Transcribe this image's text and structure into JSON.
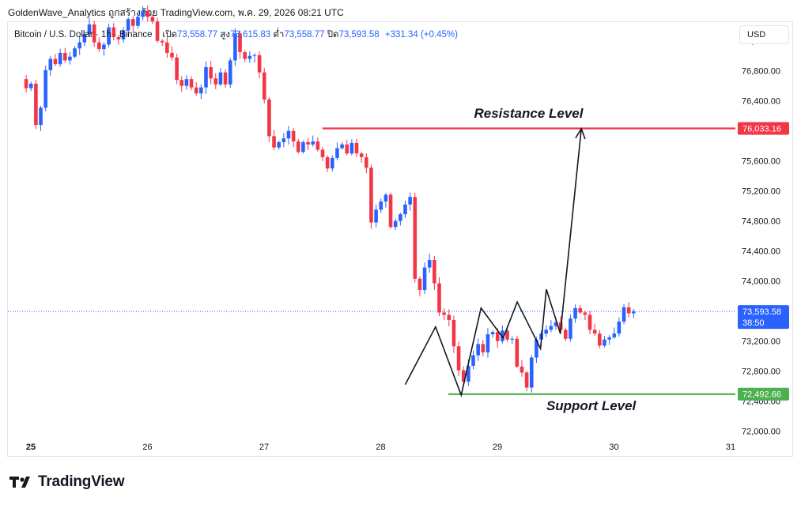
{
  "header": {
    "attribution": "GoldenWave_Analytics ถูกสร้างด้วย TradingView.com, พ.ค. 29, 2026 08:21 UTC"
  },
  "legend": {
    "symbol": "Bitcoin / U.S. Dollar · 1h · Binance",
    "open_label": "เปิด",
    "open": "73,558.77",
    "high_label": "สูง",
    "high": "73,615.83",
    "low_label": "ต่ำ",
    "low": "73,558.77",
    "close_label": "ปิด",
    "close": "73,593.58",
    "change": "+331.34 (+0.45%)"
  },
  "currency": "USD",
  "brand": {
    "name": "TradingView",
    "logo_icon": "tradingview-logo-icon"
  },
  "colors": {
    "up": "#2962ff",
    "down": "#f23645",
    "resistance": "#f23645",
    "support": "#4caf50",
    "last_price": "#2962ff",
    "arrow": "#131722"
  },
  "chart_data": {
    "type": "candlestick",
    "interval": "1h",
    "ylim": [
      71900,
      77450
    ],
    "y_ticks": [
      72000,
      72400,
      72800,
      73200,
      73600,
      74000,
      74400,
      74800,
      75200,
      75600,
      76000,
      76400,
      76800,
      77200
    ],
    "y_tick_labels": [
      "72,000.00",
      "72,400.00",
      "72,800.00",
      "73,200.00",
      "73,600.00",
      "74,000.00",
      "74,400.00",
      "74,800.00",
      "75,200.00",
      "75,600.00",
      "76,000.00",
      "76,400.00",
      "76,800.00",
      "77,200.00"
    ],
    "x_ticks": [
      {
        "day": 25,
        "label": "25"
      },
      {
        "day": 26,
        "label": "26"
      },
      {
        "day": 27,
        "label": "27"
      },
      {
        "day": 28,
        "label": "28"
      },
      {
        "day": 29,
        "label": "29"
      },
      {
        "day": 30,
        "label": "30"
      },
      {
        "day": 31,
        "label": "31"
      }
    ],
    "start_day": 24.96,
    "candles_per_day": 24,
    "closes": [
      76570,
      76630,
      76080,
      76310,
      76810,
      76960,
      76890,
      77040,
      76940,
      76990,
      77100,
      77180,
      77290,
      77420,
      77180,
      77090,
      77150,
      77380,
      77250,
      77220,
      77340,
      77490,
      77400,
      77520,
      77600,
      77520,
      77460,
      77200,
      77180,
      77040,
      76980,
      76680,
      76600,
      76690,
      76580,
      76500,
      76580,
      76850,
      76700,
      76620,
      76780,
      76620,
      76940,
      77300,
      77050,
      76960,
      77000,
      77010,
      76780,
      76420,
      75930,
      75780,
      75850,
      75900,
      76000,
      75860,
      75720,
      75850,
      75820,
      75860,
      75750,
      75650,
      75500,
      75640,
      75770,
      75820,
      75700,
      75840,
      75700,
      75650,
      75510,
      74780,
      74950,
      75060,
      75150,
      74720,
      74800,
      74890,
      75020,
      75120,
      74030,
      73880,
      74180,
      74280,
      73970,
      73580,
      73550,
      73480,
      73130,
      72810,
      72660,
      72870,
      73010,
      73160,
      73050,
      73290,
      73320,
      73200,
      73340,
      73220,
      73230,
      72860,
      72780,
      72580,
      72980,
      73220,
      73300,
      73350,
      73400,
      73450,
      73350,
      73230,
      73500,
      73640,
      73580,
      73550,
      73350,
      73300,
      73140,
      73220,
      73250,
      73300,
      73460,
      73650,
      73570,
      73593.58
    ],
    "last_price": 73593.58,
    "last_price_label": "73,593.58",
    "countdown": "38:50",
    "resistance": {
      "value": 76033.16,
      "label": "76,033.16",
      "title": "Resistance Level"
    },
    "support": {
      "value": 72492.66,
      "label": "72,492.66",
      "title": "Support Level"
    },
    "projection_path": [
      {
        "t": 28.21,
        "y": 72620
      },
      {
        "t": 28.47,
        "y": 73390
      },
      {
        "t": 28.69,
        "y": 72480
      },
      {
        "t": 28.86,
        "y": 73640
      },
      {
        "t": 29.05,
        "y": 73240
      },
      {
        "t": 29.17,
        "y": 73720
      },
      {
        "t": 29.37,
        "y": 73100
      },
      {
        "t": 29.42,
        "y": 73890
      },
      {
        "t": 29.54,
        "y": 73300
      },
      {
        "t": 29.72,
        "y": 76030
      }
    ]
  }
}
